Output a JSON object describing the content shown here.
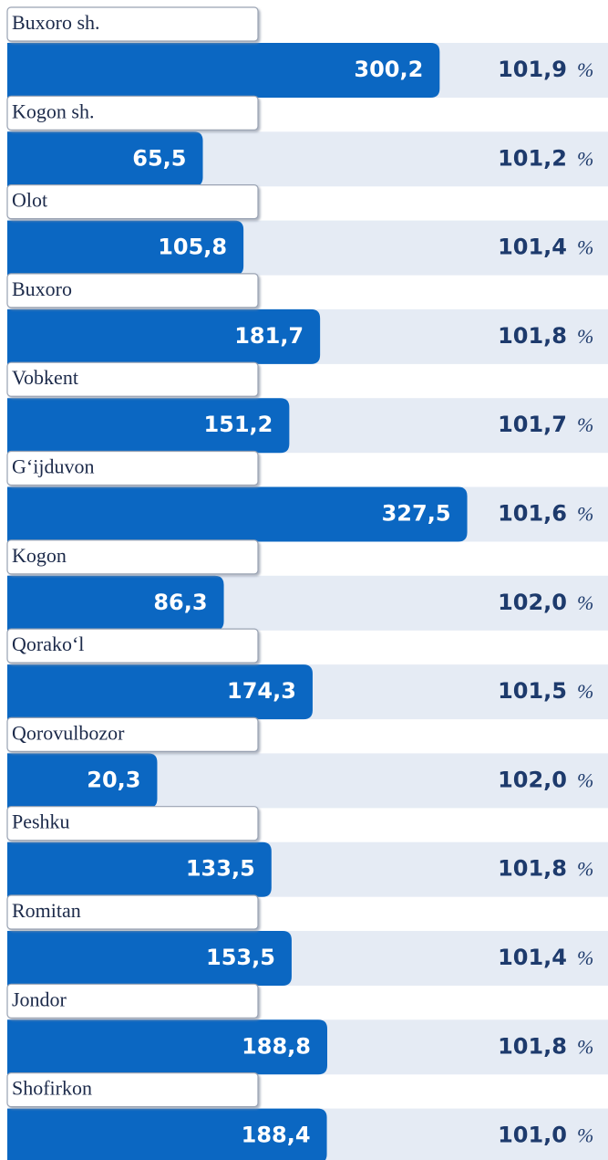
{
  "chart_data": {
    "type": "bar",
    "categories": [
      "Buxoro sh.",
      "Kogon sh.",
      "Olot",
      "Buxoro",
      "Vobkent",
      "G‘ijduvon",
      "Kogon",
      "Qorako‘l",
      "Qorovulbozor",
      "Peshku",
      "Romitan",
      "Jondor",
      "Shofirkon"
    ],
    "values": [
      300.2,
      65.5,
      105.8,
      181.7,
      151.2,
      327.5,
      86.3,
      174.3,
      20.3,
      133.5,
      153.5,
      188.8,
      188.4
    ],
    "value_labels": [
      "300,2",
      "65,5",
      "105,8",
      "181,7",
      "151,2",
      "327,5",
      "86,3",
      "174,3",
      "20,3",
      "133,5",
      "153,5",
      "188,8",
      "188,4"
    ],
    "color": "#0b67c2",
    "growth": [
      101.9,
      101.2,
      101.4,
      101.8,
      101.7,
      101.6,
      102.0,
      101.5,
      102.0,
      101.8,
      101.4,
      101.8,
      101.0
    ],
    "growth_labels": [
      "101,9",
      "101,2",
      "101,4",
      "101,8",
      "101,7",
      "101,6",
      "102,0",
      "101,5",
      "102,0",
      "101,8",
      "101,4",
      "101,8",
      "101,0"
    ],
    "growth_unit": "%"
  }
}
